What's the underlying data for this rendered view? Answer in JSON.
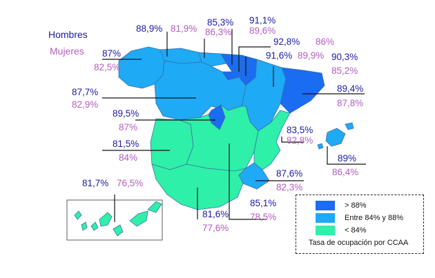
{
  "colors": {
    "high": "#1a6cf0",
    "mid": "#1eaaf5",
    "low": "#2ef0a8",
    "men": "#1a1aa8",
    "women": "#b35cbf"
  },
  "header": {
    "men": "Hombres",
    "women": "Mujeres"
  },
  "regions": [
    {
      "key": "galicia",
      "men": "87%",
      "women": "82,5%",
      "level": "mid"
    },
    {
      "key": "asturias",
      "men": "88,9%",
      "women": "81,9%",
      "level": "mid"
    },
    {
      "key": "cantabria",
      "men": "85,3%",
      "women": "86,3%",
      "level": "mid"
    },
    {
      "key": "pais_vasco",
      "men": "91,1%",
      "women": "89,6%",
      "level": "high"
    },
    {
      "key": "navarra",
      "men": "92,8%",
      "women": "86%",
      "level": "high"
    },
    {
      "key": "la_rioja",
      "men": "91,6%",
      "women": "89,9%",
      "level": "high"
    },
    {
      "key": "aragon",
      "men": "90,3%",
      "women": "85,2%",
      "level": "mid"
    },
    {
      "key": "cataluna",
      "men": "89,4%",
      "women": "87,8%",
      "level": "high"
    },
    {
      "key": "castilla_leon",
      "men": "87,7%",
      "women": "82,9%",
      "level": "mid"
    },
    {
      "key": "madrid",
      "men": "89,5%",
      "women": "87%",
      "level": "high"
    },
    {
      "key": "valencia",
      "men": "83,5%",
      "women": "82,8%",
      "level": "low"
    },
    {
      "key": "baleares",
      "men": "89%",
      "women": "86,4%",
      "level": "mid"
    },
    {
      "key": "extremadura",
      "men": "81,5%",
      "women": "84%",
      "level": "low"
    },
    {
      "key": "murcia",
      "men": "87,6%",
      "women": "82,3%",
      "level": "mid"
    },
    {
      "key": "canarias",
      "men": "81,7%",
      "women": "76,5%",
      "level": "low"
    },
    {
      "key": "andalucia",
      "men": "81,6%",
      "women": "77,6%",
      "level": "low"
    },
    {
      "key": "castilla_la_mancha",
      "men": "85,1%",
      "women": "78,5%",
      "level": "low"
    }
  ],
  "legend": {
    "items": [
      {
        "label": "> 88%",
        "level": "high"
      },
      {
        "label": "Entre 84% y 88%",
        "level": "mid"
      },
      {
        "label": "< 84%",
        "level": "low"
      }
    ],
    "caption": "Tasa de ocupación por CCAA"
  }
}
